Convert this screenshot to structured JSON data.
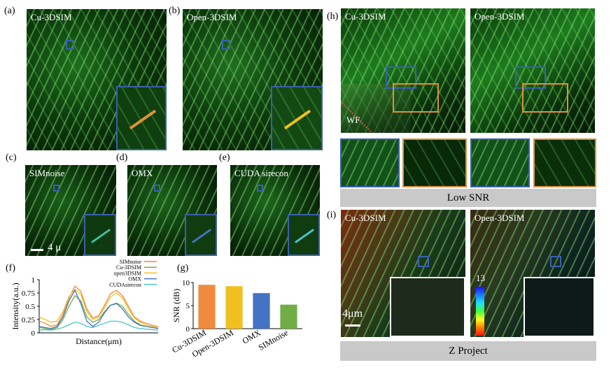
{
  "panels": {
    "a": {
      "label": "(a)",
      "title": "Cu-3DSIM"
    },
    "b": {
      "label": "(b)",
      "title": "Open-3DSIM"
    },
    "c": {
      "label": "(c)",
      "title": "SIMnoise"
    },
    "d": {
      "label": "(d)",
      "title": "OMX"
    },
    "e": {
      "label": "(e)",
      "title": "CUDA sirecon"
    },
    "f": {
      "label": "(f)"
    },
    "g": {
      "label": "(g)"
    },
    "h": {
      "label": "(h)",
      "left_title": "Cu-3DSIM",
      "right_title": "Open-3DSIM",
      "wf_label": "WF",
      "caption": "Low SNR"
    },
    "i": {
      "label": "(i)",
      "left_title": "Cu-3DSIM",
      "right_title": "Open-3DSIM",
      "colorbar_max": "13",
      "caption": "Z Project"
    }
  },
  "scalebars": {
    "c": "4 μ",
    "i": "4μm"
  },
  "colors": {
    "orange": "#f08a3c",
    "yellow": "#f0c020",
    "blue": "#4472c4",
    "green": "#70ad47",
    "cyan": "#4fc3c8",
    "box_blue": "#3a5fb0",
    "box_orange": "#e0913c"
  },
  "chart_data": [
    {
      "type": "line",
      "xlabel": "Distance(μm)",
      "ylabel": "Intensity(a.u.)",
      "ylim": [
        0,
        1
      ],
      "yticks": [
        "0",
        "0.25",
        "0.5",
        "0.75",
        "1"
      ],
      "legend": [
        "SIMnoise",
        "Cu-3DSIM",
        "open3DSIM",
        "OMX",
        "CUDAsirecon"
      ],
      "x": [
        0,
        1,
        2,
        3,
        4,
        5,
        6,
        7,
        8,
        9,
        10,
        11,
        12,
        13,
        14,
        15,
        16,
        17,
        18,
        19,
        20
      ],
      "series": [
        {
          "name": "SIMnoise",
          "color": "#f08a3c",
          "values": [
            0.22,
            0.18,
            0.12,
            0.15,
            0.35,
            0.65,
            0.88,
            0.78,
            0.45,
            0.28,
            0.32,
            0.52,
            0.74,
            0.8,
            0.7,
            0.5,
            0.3,
            0.22,
            0.18,
            0.14,
            0.12
          ]
        },
        {
          "name": "Cu-3DSIM",
          "color": "#70ad47",
          "values": [
            0.1,
            0.08,
            0.06,
            0.1,
            0.25,
            0.5,
            0.7,
            0.6,
            0.3,
            0.2,
            0.25,
            0.4,
            0.52,
            0.56,
            0.5,
            0.35,
            0.22,
            0.15,
            0.12,
            0.1,
            0.08
          ]
        },
        {
          "name": "open3DSIM",
          "color": "#f0c020",
          "values": [
            0.3,
            0.25,
            0.2,
            0.22,
            0.4,
            0.68,
            0.82,
            0.72,
            0.4,
            0.25,
            0.3,
            0.48,
            0.68,
            0.75,
            0.66,
            0.45,
            0.28,
            0.2,
            0.15,
            0.12,
            0.1
          ]
        },
        {
          "name": "OMX",
          "color": "#4472c4",
          "values": [
            0.12,
            0.1,
            0.08,
            0.12,
            0.3,
            0.6,
            0.8,
            0.55,
            0.22,
            0.12,
            0.2,
            0.38,
            0.52,
            0.55,
            0.45,
            0.3,
            0.2,
            0.14,
            0.12,
            0.1,
            0.08
          ]
        },
        {
          "name": "CUDAsirecon",
          "color": "#4fc3c8",
          "values": [
            0.05,
            0.06,
            0.05,
            0.07,
            0.1,
            0.15,
            0.2,
            0.18,
            0.12,
            0.1,
            0.14,
            0.18,
            0.22,
            0.22,
            0.2,
            0.15,
            0.1,
            0.08,
            0.07,
            0.06,
            0.05
          ]
        }
      ]
    },
    {
      "type": "bar",
      "ylabel": "SNR (dB)",
      "ylim": [
        0,
        10
      ],
      "yticks": [
        "0",
        "5",
        "10"
      ],
      "categories": [
        "Cu-3DSIM",
        "Open-3DSIM",
        "OMX",
        "SIMnoise"
      ],
      "values": [
        9.5,
        9.2,
        7.7,
        5.2
      ],
      "colors": [
        "#f08a3c",
        "#f0c020",
        "#4472c4",
        "#70ad47"
      ]
    }
  ]
}
